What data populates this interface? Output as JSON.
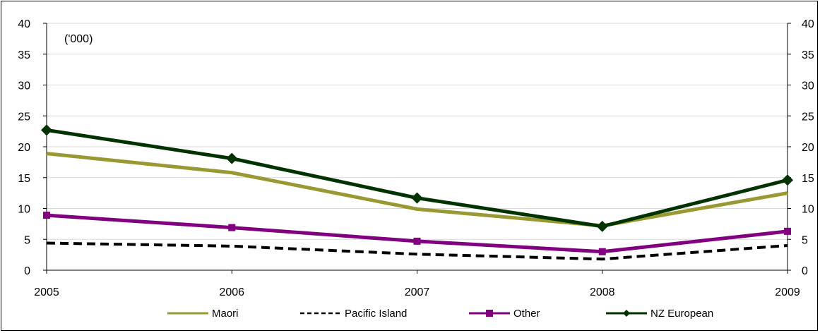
{
  "chart_data": {
    "type": "line",
    "title": "",
    "unit_label": "('000)",
    "xlabel": "",
    "ylabel": "",
    "x": [
      "2005",
      "2006",
      "2007",
      "2008",
      "2009"
    ],
    "ylim": [
      0,
      40
    ],
    "yticks": [
      0,
      5,
      10,
      15,
      20,
      25,
      30,
      35,
      40
    ],
    "grid": true,
    "legend_position": "bottom",
    "series": [
      {
        "name": "Maori",
        "values": [
          18.9,
          15.8,
          9.9,
          7.2,
          12.5
        ],
        "color": "#999933",
        "style": "solid",
        "marker": "none"
      },
      {
        "name": "Pacific Island",
        "values": [
          4.4,
          3.9,
          2.6,
          1.8,
          4.0
        ],
        "color": "#000000",
        "style": "dashed",
        "marker": "none"
      },
      {
        "name": "Other",
        "values": [
          8.9,
          6.9,
          4.7,
          3.0,
          6.3
        ],
        "color": "#800080",
        "style": "solid",
        "marker": "square"
      },
      {
        "name": "NZ European",
        "values": [
          22.7,
          18.1,
          11.7,
          7.1,
          14.6
        ],
        "color": "#003300",
        "style": "solid",
        "marker": "diamond"
      }
    ]
  }
}
